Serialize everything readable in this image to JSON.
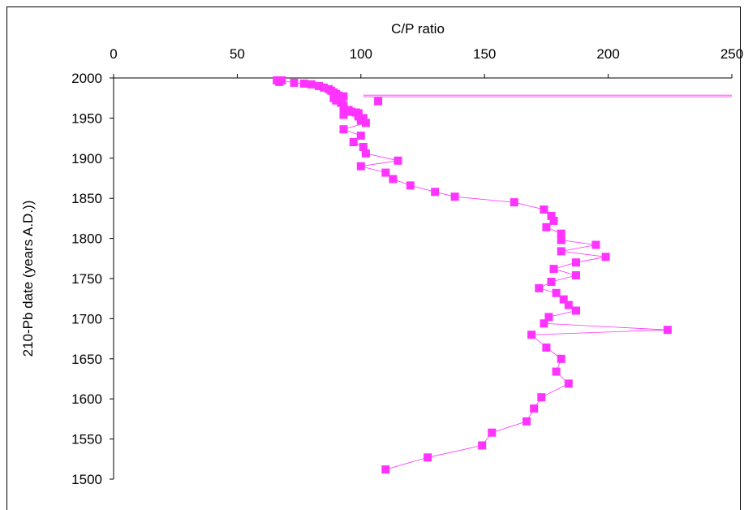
{
  "chart_data": {
    "type": "scatter",
    "xlabel": "C/P ratio",
    "ylabel": "210-Pb date (years A.D.))",
    "xlim": [
      0,
      250
    ],
    "ylim": [
      1500,
      2000
    ],
    "xticks": [
      "0",
      "50",
      "100",
      "150",
      "200",
      "250"
    ],
    "yticks": [
      "1500",
      "1550",
      "1600",
      "1650",
      "1700",
      "1750",
      "1800",
      "1850",
      "1900",
      "1950",
      "2000"
    ],
    "x_axis_position": "top",
    "grid": false,
    "legend": "none",
    "marker": "square",
    "series_color": "#ff33ff",
    "series": [
      {
        "points": [
          [
            66,
            1997
          ],
          [
            67,
            1995
          ],
          [
            68,
            1997
          ],
          [
            73,
            1994
          ],
          [
            77,
            1993
          ],
          [
            80,
            1992
          ],
          [
            83,
            1990
          ],
          [
            85,
            1988
          ],
          [
            87,
            1986
          ],
          [
            88,
            1984
          ],
          [
            89,
            1982
          ],
          [
            90,
            1980
          ],
          [
            91,
            1978
          ],
          [
            93,
            1977
          ],
          [
            89,
            1975
          ],
          [
            90,
            1972
          ],
          [
            92,
            1969
          ],
          [
            93,
            1966
          ],
          [
            93,
            1962
          ],
          [
            95,
            1960
          ],
          [
            96,
            1958
          ],
          [
            98,
            1957
          ],
          [
            99,
            1956
          ],
          [
            93,
            1954
          ],
          [
            99,
            1952
          ],
          [
            101,
            1950
          ],
          [
            100,
            1947
          ],
          [
            102,
            1944
          ],
          [
            93,
            1936
          ],
          [
            100,
            1928
          ],
          [
            97,
            1920
          ],
          [
            101,
            1914
          ],
          [
            102,
            1906
          ],
          [
            115,
            1897
          ],
          [
            100,
            1890
          ],
          [
            110,
            1882
          ],
          [
            113,
            1874
          ],
          [
            120,
            1866
          ],
          [
            130,
            1858
          ],
          [
            138,
            1852
          ],
          [
            162,
            1845
          ],
          [
            174,
            1836
          ],
          [
            177,
            1828
          ],
          [
            178,
            1822
          ],
          [
            175,
            1814
          ],
          [
            181,
            1806
          ],
          [
            181,
            1798
          ],
          [
            195,
            1792
          ],
          [
            181,
            1784
          ],
          [
            199,
            1777
          ],
          [
            187,
            1770
          ],
          [
            178,
            1762
          ],
          [
            187,
            1754
          ],
          [
            177,
            1746
          ],
          [
            172,
            1738
          ],
          [
            179,
            1732
          ],
          [
            182,
            1724
          ],
          [
            184,
            1717
          ],
          [
            187,
            1710
          ],
          [
            176,
            1702
          ],
          [
            174,
            1694
          ],
          [
            224,
            1686
          ],
          [
            169,
            1680
          ],
          [
            175,
            1664
          ],
          [
            181,
            1650
          ],
          [
            179,
            1634
          ],
          [
            184,
            1619
          ],
          [
            173,
            1602
          ],
          [
            170,
            1588
          ],
          [
            167,
            1572
          ],
          [
            153,
            1558
          ],
          [
            149,
            1542
          ],
          [
            127,
            1527
          ],
          [
            110,
            1512
          ]
        ]
      }
    ]
  }
}
